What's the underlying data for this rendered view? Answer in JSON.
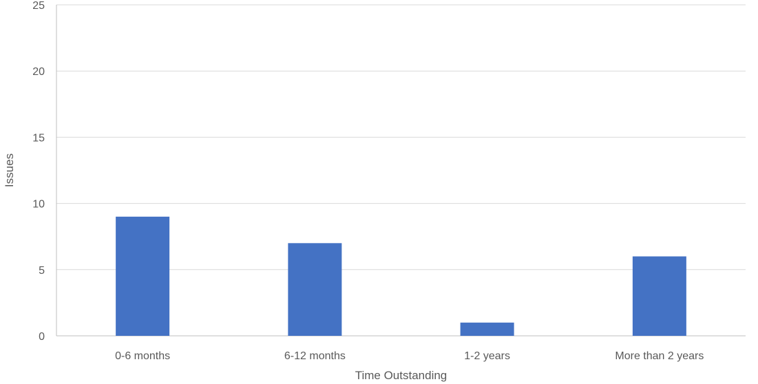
{
  "chart_data": {
    "type": "bar",
    "categories": [
      "0-6 months",
      "6-12 months",
      "1-2 years",
      "More than 2 years"
    ],
    "series": [
      {
        "values": [
          9,
          7,
          1,
          6
        ]
      }
    ],
    "title": "",
    "xlabel": "Time Outstanding",
    "ylabel": "Issues",
    "ylim": [
      0,
      25
    ],
    "yticks": [
      0,
      5,
      10,
      15,
      20,
      25
    ],
    "grid": true,
    "legend": "none",
    "bar_color": "#4472C4"
  }
}
